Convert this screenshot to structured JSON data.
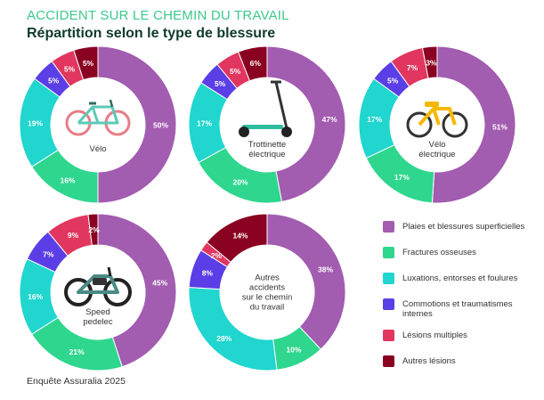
{
  "header": {
    "kicker": "ACCIDENT SUR LE CHEMIN DU TRAVAIL",
    "title": "Répartition selon le type de blessure"
  },
  "colors": {
    "plaies": "#a25cb0",
    "fractures": "#2fd68e",
    "luxations": "#20d6cf",
    "commotions": "#5b3ee6",
    "multiples": "#e1365f",
    "autres": "#8a0020"
  },
  "legend": [
    {
      "key": "plaies",
      "label": "Plaies et blessures superficielles"
    },
    {
      "key": "fractures",
      "label": "Fractures osseuses"
    },
    {
      "key": "luxations",
      "label": "Luxations, entorses et foulures"
    },
    {
      "key": "commotions",
      "label": "Commotions et traumatismes internes"
    },
    {
      "key": "multiples",
      "label": "Lésions multiples"
    },
    {
      "key": "autres",
      "label": "Autres lésions"
    }
  ],
  "chart_data": [
    {
      "type": "pie",
      "center_label": [
        "Vélo"
      ],
      "icon": "bicycle-icon",
      "categories": [
        "Plaies et blessures superficielles",
        "Fractures osseuses",
        "Luxations, entorses et foulures",
        "Commotions et traumatismes internes",
        "Lésions multiples",
        "Autres lésions"
      ],
      "values": [
        50,
        16,
        19,
        5,
        5,
        5
      ],
      "labels": [
        "50%",
        "16%",
        "19%",
        "5%",
        "5%",
        "5%"
      ]
    },
    {
      "type": "pie",
      "center_label": [
        "Trottinette",
        "électrique"
      ],
      "icon": "scooter-icon",
      "categories": [
        "Plaies et blessures superficielles",
        "Fractures osseuses",
        "Luxations, entorses et foulures",
        "Commotions et traumatismes internes",
        "Lésions multiples",
        "Autres lésions"
      ],
      "values": [
        47,
        20,
        17,
        5,
        5,
        6
      ],
      "labels": [
        "47%",
        "20%",
        "17%",
        "5%",
        "5%",
        "6%"
      ]
    },
    {
      "type": "pie",
      "center_label": [
        "Vélo",
        "électrique"
      ],
      "icon": "ebike-icon",
      "categories": [
        "Plaies et blessures superficielles",
        "Fractures osseuses",
        "Luxations, entorses et foulures",
        "Commotions et traumatismes internes",
        "Lésions multiples",
        "Autres lésions"
      ],
      "values": [
        51,
        17,
        17,
        5,
        7,
        3
      ],
      "labels": [
        "51%",
        "17%",
        "17%",
        "5%",
        "7%",
        "3%"
      ]
    },
    {
      "type": "pie",
      "center_label": [
        "Speed",
        "pedelec"
      ],
      "icon": "speed-pedelec-icon",
      "categories": [
        "Plaies et blessures superficielles",
        "Fractures osseuses",
        "Luxations, entorses et foulures",
        "Commotions et traumatismes internes",
        "Lésions multiples",
        "Autres lésions"
      ],
      "values": [
        45,
        21,
        16,
        7,
        9,
        2
      ],
      "labels": [
        "45%",
        "21%",
        "16%",
        "7%",
        "9%",
        "2%"
      ]
    },
    {
      "type": "pie",
      "center_label": [
        "Autres",
        "accidents",
        "sur le chemin",
        "du travail"
      ],
      "icon": "",
      "categories": [
        "Plaies et blessures superficielles",
        "Fractures osseuses",
        "Luxations, entorses et foulures",
        "Commotions et traumatismes internes",
        "Lésions multiples",
        "Autres lésions"
      ],
      "values": [
        38,
        10,
        28,
        8,
        2,
        14
      ],
      "labels": [
        "38%",
        "10%",
        "28%",
        "8%",
        "2%",
        "14%"
      ]
    }
  ],
  "source": "Enquête Assuralia 2025"
}
